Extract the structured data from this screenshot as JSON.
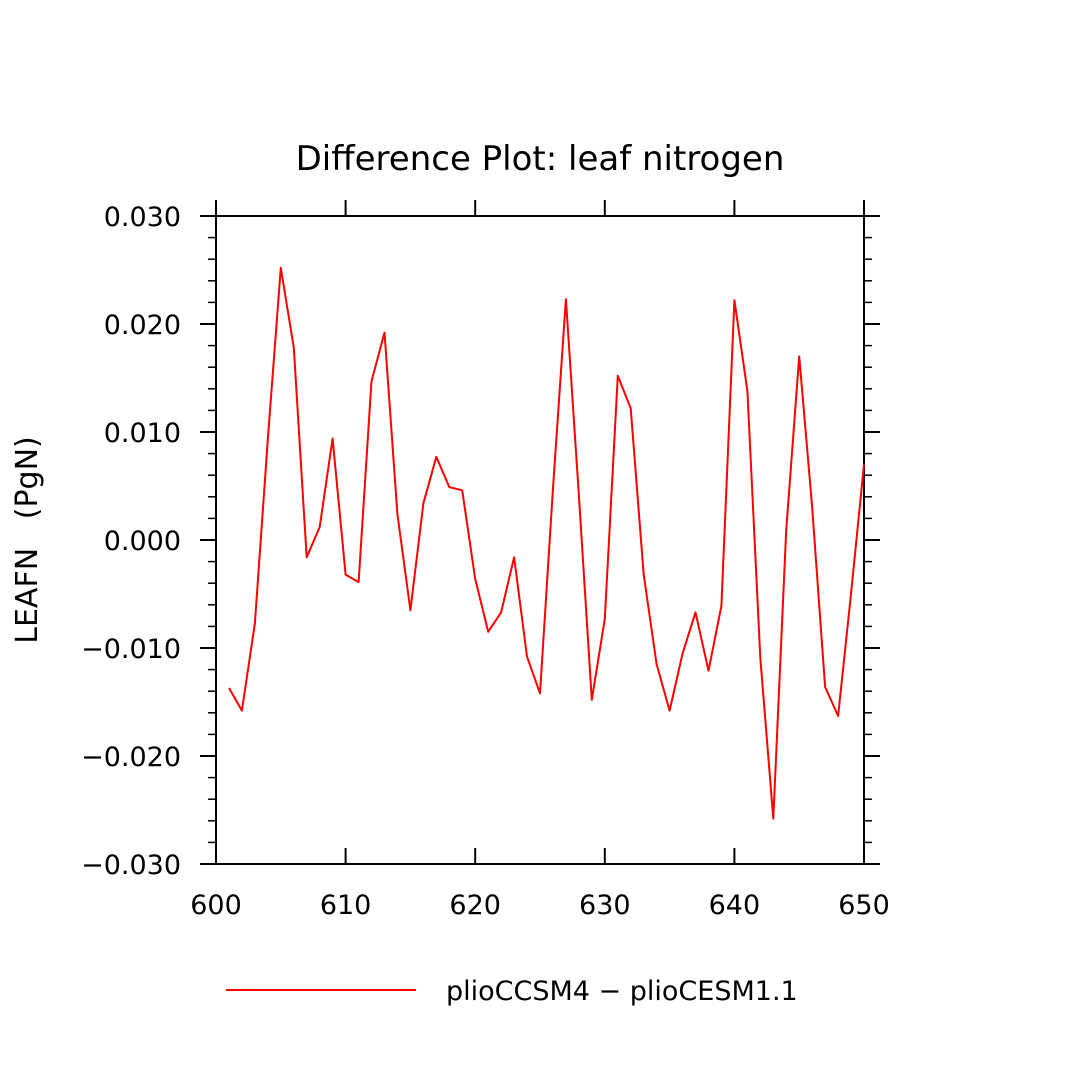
{
  "chart_data": {
    "type": "line",
    "title": "Difference Plot: leaf nitrogen",
    "ylabel": "LEAFN   (PgN)",
    "xlabel": "",
    "xlim": [
      600,
      650
    ],
    "ylim": [
      -0.03,
      0.03
    ],
    "x_ticks": [
      600,
      610,
      620,
      630,
      640,
      650
    ],
    "x_tick_labels": [
      "600",
      "610",
      "620",
      "630",
      "640",
      "650"
    ],
    "y_ticks": [
      0.03,
      0.02,
      0.01,
      0.0,
      -0.01,
      -0.02,
      -0.03
    ],
    "y_tick_labels": [
      "0.030",
      "0.020",
      "0.010",
      "0.000",
      "−0.010",
      "−0.020",
      "−0.030"
    ],
    "grid": false,
    "legend_position": "bottom",
    "series": [
      {
        "name": "plioCCSM4 − plioCESM1.1",
        "color": "#ff0000",
        "x": [
          601,
          602,
          603,
          604,
          605,
          606,
          607,
          608,
          609,
          610,
          611,
          612,
          613,
          614,
          615,
          616,
          617,
          618,
          619,
          620,
          621,
          622,
          623,
          624,
          625,
          626,
          627,
          628,
          629,
          630,
          631,
          632,
          633,
          634,
          635,
          636,
          637,
          638,
          639,
          640,
          641,
          642,
          643,
          644,
          645,
          646,
          647,
          648,
          649,
          650
        ],
        "values": [
          -0.0137,
          -0.0158,
          -0.0077,
          0.0093,
          0.0252,
          0.0178,
          -0.0016,
          0.0012,
          0.0094,
          -0.0032,
          -0.0039,
          0.0147,
          0.0192,
          0.0024,
          -0.0065,
          0.0034,
          0.0077,
          0.0049,
          0.0046,
          -0.0036,
          -0.0085,
          -0.0067,
          -0.0016,
          -0.0108,
          -0.0142,
          0.0048,
          0.0223,
          0.0041,
          -0.0148,
          -0.0073,
          0.0152,
          0.0122,
          -0.0032,
          -0.0115,
          -0.0158,
          -0.0105,
          -0.0067,
          -0.0121,
          -0.0061,
          0.0222,
          0.0138,
          -0.0109,
          -0.0258,
          0.0009,
          0.017,
          0.003,
          -0.0136,
          -0.0163,
          -0.005,
          0.007
        ]
      }
    ]
  }
}
